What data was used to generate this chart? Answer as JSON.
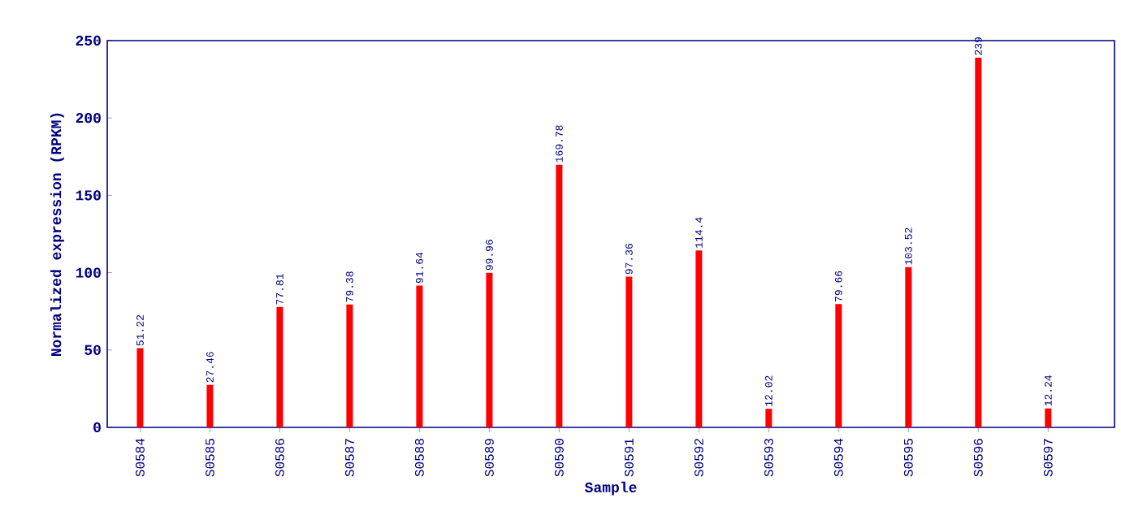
{
  "chart_data": {
    "type": "bar",
    "xlabel": "Sample",
    "ylabel": "Normalized expression (RPKM)",
    "categories": [
      "S0584",
      "S0585",
      "S0586",
      "S0587",
      "S0588",
      "S0589",
      "S0590",
      "S0591",
      "S0592",
      "S0593",
      "S0594",
      "S0595",
      "S0596",
      "S0597"
    ],
    "values": [
      51.22,
      27.46,
      77.81,
      79.38,
      91.64,
      99.96,
      169.78,
      97.36,
      114.4,
      12.02,
      79.66,
      103.52,
      239,
      12.24
    ],
    "color": "#ff0000",
    "ylim": [
      0,
      250
    ],
    "yticks": [
      0,
      50,
      100,
      150,
      200,
      250
    ],
    "data_labels": true
  }
}
